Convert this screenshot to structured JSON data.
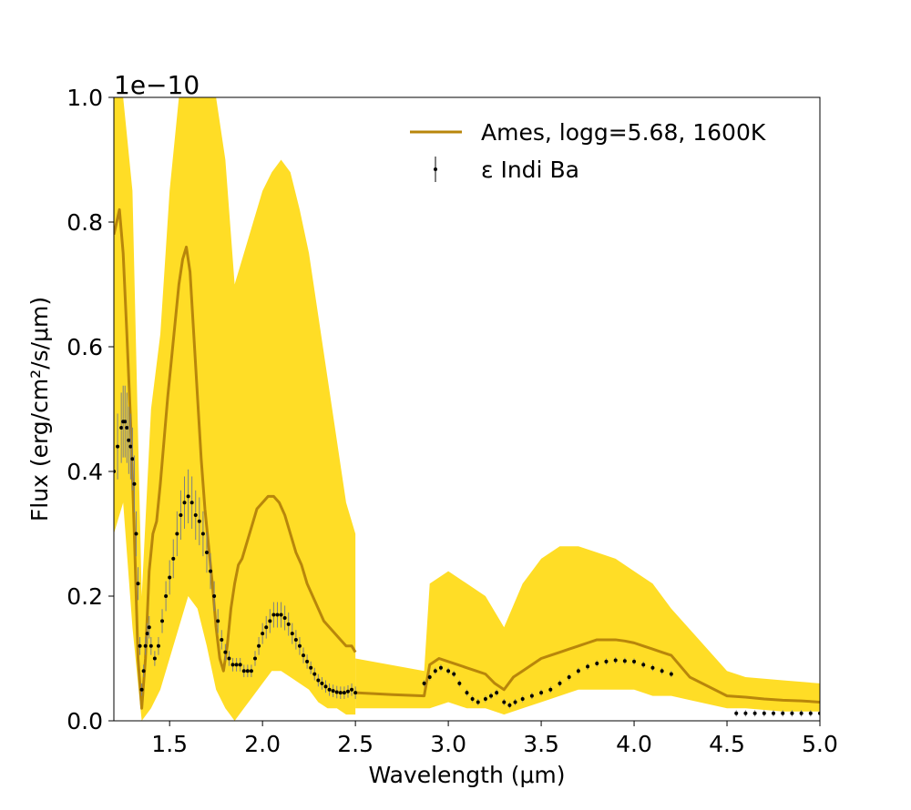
{
  "chart_data": {
    "type": "line",
    "title": "",
    "xlabel": "Wavelength (μm)",
    "ylabel": "Flux (erg/cm²/s/μm)",
    "offset_label": "1e−10",
    "xlim": [
      1.2,
      5.0
    ],
    "ylim": [
      0.0,
      1.0
    ],
    "xticks": [
      1.5,
      2.0,
      2.5,
      3.0,
      3.5,
      4.0,
      4.5,
      5.0
    ],
    "xtick_labels": [
      "1.5",
      "2.0",
      "2.5",
      "3.0",
      "3.5",
      "4.0",
      "4.5",
      "5.0"
    ],
    "yticks": [
      0.0,
      0.2,
      0.4,
      0.6,
      0.8,
      1.0
    ],
    "ytick_labels": [
      "0.0",
      "0.2",
      "0.4",
      "0.6",
      "0.8",
      "1.0"
    ],
    "grid": false,
    "legend_position": "top-right",
    "colors": {
      "model": "#b8860b",
      "model_band": "#ffd700",
      "data": "#000000",
      "errorbar": "#808080"
    },
    "series": [
      {
        "name": "Ames, logg=5.68, 1600K",
        "kind": "model",
        "segments": [
          {
            "x": [
              1.2,
              1.23,
              1.25,
              1.27,
              1.29,
              1.31,
              1.33,
              1.35,
              1.37,
              1.39,
              1.41,
              1.43,
              1.45,
              1.47,
              1.49,
              1.51,
              1.53,
              1.55,
              1.57,
              1.59,
              1.61,
              1.63,
              1.65,
              1.67,
              1.69,
              1.71,
              1.73,
              1.75,
              1.77,
              1.79,
              1.81,
              1.83,
              1.85,
              1.87,
              1.89,
              1.91,
              1.93,
              1.95,
              1.97,
              2.0,
              2.03,
              2.06,
              2.09,
              2.12,
              2.15,
              2.18,
              2.21,
              2.24,
              2.27,
              2.3,
              2.33,
              2.36,
              2.39,
              2.42,
              2.45,
              2.48,
              2.5
            ],
            "y": [
              0.78,
              0.82,
              0.75,
              0.62,
              0.48,
              0.3,
              0.1,
              0.02,
              0.1,
              0.24,
              0.3,
              0.32,
              0.38,
              0.45,
              0.52,
              0.58,
              0.64,
              0.7,
              0.74,
              0.76,
              0.72,
              0.62,
              0.52,
              0.42,
              0.34,
              0.28,
              0.22,
              0.15,
              0.1,
              0.08,
              0.12,
              0.18,
              0.22,
              0.25,
              0.26,
              0.28,
              0.3,
              0.32,
              0.34,
              0.35,
              0.36,
              0.36,
              0.35,
              0.33,
              0.3,
              0.27,
              0.25,
              0.22,
              0.2,
              0.18,
              0.16,
              0.15,
              0.14,
              0.13,
              0.12,
              0.12,
              0.11
            ]
          },
          {
            "x": [
              2.5,
              2.7,
              2.87,
              2.9,
              2.95,
              3.0,
              3.05,
              3.1,
              3.15,
              3.2,
              3.25,
              3.3,
              3.35,
              3.4,
              3.45,
              3.5,
              3.55,
              3.6,
              3.65,
              3.7,
              3.75,
              3.8,
              3.85,
              3.9,
              3.95,
              4.0,
              4.05,
              4.1,
              4.15,
              4.2,
              4.3,
              4.5,
              4.6,
              4.7,
              4.8,
              4.9,
              5.0
            ],
            "y": [
              0.045,
              0.042,
              0.04,
              0.09,
              0.1,
              0.095,
              0.09,
              0.085,
              0.08,
              0.075,
              0.06,
              0.05,
              0.07,
              0.08,
              0.09,
              0.1,
              0.105,
              0.11,
              0.115,
              0.12,
              0.125,
              0.13,
              0.13,
              0.13,
              0.128,
              0.125,
              0.12,
              0.115,
              0.11,
              0.105,
              0.07,
              0.04,
              0.038,
              0.035,
              0.033,
              0.032,
              0.03
            ]
          }
        ],
        "band_upper": [
          {
            "x": [
              1.2,
              1.25,
              1.3,
              1.35,
              1.4,
              1.45,
              1.5,
              1.55,
              1.6,
              1.65,
              1.7,
              1.75,
              1.8,
              1.85,
              1.9,
              1.95,
              2.0,
              2.05,
              2.1,
              2.15,
              2.2,
              2.25,
              2.3,
              2.35,
              2.4,
              2.45,
              2.5
            ],
            "y": [
              1.0,
              1.0,
              0.85,
              0.2,
              0.5,
              0.62,
              0.85,
              1.0,
              1.0,
              1.0,
              1.0,
              1.0,
              0.9,
              0.7,
              0.75,
              0.8,
              0.85,
              0.88,
              0.9,
              0.88,
              0.82,
              0.75,
              0.65,
              0.55,
              0.45,
              0.35,
              0.3
            ]
          },
          {
            "x": [
              2.5,
              2.87,
              2.9,
              3.0,
              3.1,
              3.2,
              3.3,
              3.4,
              3.5,
              3.6,
              3.7,
              3.8,
              3.9,
              4.0,
              4.1,
              4.2,
              4.5,
              4.6,
              4.8,
              5.0
            ],
            "y": [
              0.1,
              0.08,
              0.22,
              0.24,
              0.22,
              0.2,
              0.15,
              0.22,
              0.26,
              0.28,
              0.28,
              0.27,
              0.26,
              0.24,
              0.22,
              0.18,
              0.08,
              0.07,
              0.065,
              0.06
            ]
          }
        ],
        "band_lower": [
          {
            "x": [
              1.2,
              1.25,
              1.3,
              1.35,
              1.4,
              1.45,
              1.5,
              1.55,
              1.6,
              1.65,
              1.7,
              1.75,
              1.8,
              1.85,
              1.9,
              1.95,
              2.0,
              2.05,
              2.1,
              2.15,
              2.2,
              2.25,
              2.3,
              2.35,
              2.4,
              2.45,
              2.5
            ],
            "y": [
              0.3,
              0.35,
              0.15,
              0.0,
              0.02,
              0.05,
              0.1,
              0.15,
              0.2,
              0.18,
              0.12,
              0.05,
              0.02,
              0.0,
              0.02,
              0.04,
              0.06,
              0.08,
              0.08,
              0.07,
              0.06,
              0.05,
              0.03,
              0.02,
              0.02,
              0.01,
              0.01
            ]
          },
          {
            "x": [
              2.5,
              2.87,
              2.9,
              3.0,
              3.1,
              3.2,
              3.3,
              3.4,
              3.5,
              3.6,
              3.7,
              3.8,
              3.9,
              4.0,
              4.1,
              4.2,
              4.5,
              4.6,
              4.8,
              5.0
            ],
            "y": [
              0.02,
              0.02,
              0.02,
              0.03,
              0.02,
              0.02,
              0.01,
              0.02,
              0.03,
              0.04,
              0.05,
              0.05,
              0.05,
              0.05,
              0.04,
              0.04,
              0.02,
              0.02,
              0.015,
              0.015
            ]
          }
        ]
      },
      {
        "name": "ε Indi Ba",
        "kind": "data",
        "segments": [
          {
            "x": [
              1.2,
              1.22,
              1.24,
              1.25,
              1.26,
              1.27,
              1.28,
              1.29,
              1.3,
              1.31,
              1.32,
              1.33,
              1.34,
              1.35,
              1.36,
              1.37,
              1.38,
              1.39,
              1.4,
              1.42,
              1.44,
              1.46,
              1.48,
              1.5,
              1.52,
              1.54,
              1.56,
              1.58,
              1.6,
              1.62,
              1.64,
              1.66,
              1.68,
              1.7,
              1.72,
              1.74,
              1.76,
              1.78,
              1.8,
              1.82,
              1.84,
              1.86,
              1.88,
              1.9,
              1.92,
              1.94,
              1.96,
              1.98,
              2.0,
              2.02,
              2.04,
              2.06,
              2.08,
              2.1,
              2.12,
              2.14,
              2.16,
              2.18,
              2.2,
              2.22,
              2.24,
              2.26,
              2.28,
              2.3,
              2.32,
              2.34,
              2.36,
              2.38,
              2.4,
              2.42,
              2.44,
              2.46,
              2.48,
              2.5
            ],
            "y": [
              0.4,
              0.44,
              0.47,
              0.48,
              0.48,
              0.47,
              0.45,
              0.44,
              0.42,
              0.38,
              0.3,
              0.22,
              0.12,
              0.05,
              0.08,
              0.12,
              0.14,
              0.15,
              0.12,
              0.1,
              0.12,
              0.16,
              0.2,
              0.23,
              0.26,
              0.3,
              0.33,
              0.35,
              0.36,
              0.35,
              0.33,
              0.32,
              0.3,
              0.27,
              0.24,
              0.2,
              0.16,
              0.13,
              0.11,
              0.1,
              0.09,
              0.09,
              0.09,
              0.08,
              0.08,
              0.08,
              0.1,
              0.12,
              0.14,
              0.15,
              0.16,
              0.17,
              0.17,
              0.17,
              0.165,
              0.155,
              0.14,
              0.13,
              0.12,
              0.105,
              0.095,
              0.085,
              0.075,
              0.065,
              0.06,
              0.055,
              0.05,
              0.048,
              0.046,
              0.045,
              0.045,
              0.047,
              0.05,
              0.045
            ]
          },
          {
            "x": [
              2.87,
              2.9,
              2.93,
              2.96,
              3.0,
              3.03,
              3.06,
              3.1,
              3.13,
              3.16,
              3.2,
              3.23,
              3.26,
              3.3,
              3.33,
              3.36,
              3.4,
              3.45,
              3.5,
              3.55,
              3.6,
              3.65,
              3.7,
              3.75,
              3.8,
              3.85,
              3.9,
              3.95,
              4.0,
              4.05,
              4.1,
              4.15,
              4.2
            ],
            "y": [
              0.06,
              0.07,
              0.08,
              0.085,
              0.08,
              0.075,
              0.06,
              0.045,
              0.035,
              0.03,
              0.035,
              0.04,
              0.045,
              0.03,
              0.025,
              0.03,
              0.035,
              0.04,
              0.045,
              0.05,
              0.06,
              0.07,
              0.08,
              0.087,
              0.092,
              0.095,
              0.097,
              0.096,
              0.095,
              0.09,
              0.085,
              0.08,
              0.075
            ]
          },
          {
            "x": [
              4.55,
              4.6,
              4.65,
              4.7,
              4.75,
              4.8,
              4.85,
              4.9,
              4.95,
              5.0
            ],
            "y": [
              0.012,
              0.012,
              0.012,
              0.012,
              0.012,
              0.012,
              0.012,
              0.012,
              0.012,
              0.012
            ]
          }
        ]
      }
    ]
  }
}
